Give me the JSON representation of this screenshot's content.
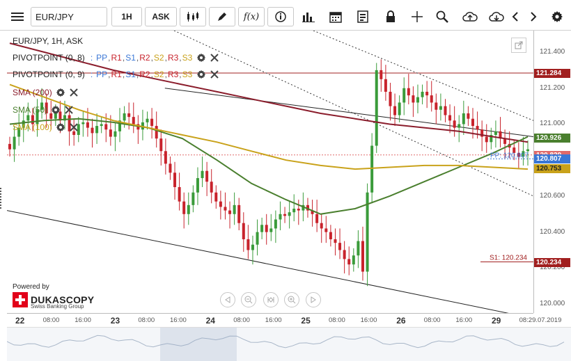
{
  "toolbar": {
    "symbol": "EUR/JPY",
    "timeframe": "1H",
    "price_side": "ASK",
    "icons": [
      "menu-icon",
      "candles-icon",
      "pen-icon",
      "function-icon",
      "info-icon",
      "bar-chart-icon",
      "calendar-icon",
      "document-icon",
      "lock-icon",
      "crosshair-icon",
      "zoom-icon",
      "upload-icon",
      "download-icon",
      "chevron-left-icon",
      "chevron-right-icon",
      "gear-icon"
    ]
  },
  "legend": {
    "title": "EUR/JPY, 1H, ASK",
    "pivot1_name": "PIVOTPOINT (0, 8)",
    "pivot2_name": "PIVOTPOINT (0, 9)",
    "pivot_sep": ":",
    "pivot_levels": [
      "PP",
      "R1",
      "S1",
      "R2",
      "S2",
      "R3",
      "S3"
    ],
    "sma200": "SMA (200)",
    "sma50": "SMA (50)",
    "sma100": "SMA (100)"
  },
  "colors": {
    "bull": "#3a9b3a",
    "bear": "#c8232c",
    "sma200": "#8b1d2c",
    "sma50": "#4a7f2e",
    "sma100": "#c9a21a",
    "pivot_pp": "#3a77d6",
    "r1": "#3a77d6",
    "r2": "#c8232c",
    "s2": "#c9a21a",
    "r3": "#c8232c",
    "s3": "#c9a21a",
    "pivot_r": "#a11f1f"
  },
  "price_axis": {
    "ticks": [
      "121.400",
      "121.200",
      "121.000",
      "120.800",
      "120.600",
      "120.400",
      "120.200",
      "120.000"
    ],
    "tags": [
      {
        "label": "121.284",
        "color": "#a11f1f"
      },
      {
        "label": "120.926",
        "color": "#4a7f2e"
      },
      {
        "label": "120.829",
        "color": "#e06a6a"
      },
      {
        "label": "120.807",
        "color": "#3a77d6"
      },
      {
        "label": "120.753",
        "color": "#c9a21a",
        "dark": true
      },
      {
        "label": "120.234",
        "color": "#a11f1f"
      }
    ]
  },
  "chart_annotations": {
    "s1_label": "S1: 120.234",
    "pp_label": "PP: 120.807"
  },
  "time_axis": {
    "labels": [
      {
        "text": "22",
        "day": true
      },
      {
        "text": "08:00"
      },
      {
        "text": "16:00"
      },
      {
        "text": "23",
        "day": true
      },
      {
        "text": "08:00"
      },
      {
        "text": "16:00"
      },
      {
        "text": "24",
        "day": true
      },
      {
        "text": "08:00"
      },
      {
        "text": "16:00"
      },
      {
        "text": "25",
        "day": true
      },
      {
        "text": "08:00"
      },
      {
        "text": "16:00"
      },
      {
        "text": "26",
        "day": true
      },
      {
        "text": "08:00"
      },
      {
        "text": "16:00"
      },
      {
        "text": "29",
        "day": true
      },
      {
        "text": "08:29.07.2019"
      }
    ]
  },
  "branding": {
    "powered_by": "Powered by",
    "company": "DUKASCOPY",
    "subtitle": "Swiss Banking Group"
  },
  "chart_data": {
    "type": "candlestick",
    "title": "EUR/JPY, 1H, ASK",
    "ylim": [
      119.95,
      121.52
    ],
    "x_ticks": [
      "22",
      "08:00",
      "16:00",
      "23",
      "08:00",
      "16:00",
      "24",
      "08:00",
      "16:00",
      "25",
      "08:00",
      "16:00",
      "26",
      "08:00",
      "16:00",
      "29",
      "08:29.07.2019"
    ],
    "closes": [
      120.86,
      120.93,
      120.98,
      121.02,
      121.05,
      121.0,
      121.08,
      121.12,
      121.06,
      121.03,
      121.07,
      121.02,
      121.05,
      120.96,
      120.94,
      121.0,
      121.01,
      120.98,
      120.95,
      120.99,
      121.0,
      120.97,
      120.93,
      120.96,
      121.02,
      121.06,
      121.04,
      121.0,
      120.97,
      121.01,
      121.03,
      120.99,
      120.92,
      120.85,
      120.78,
      120.73,
      120.65,
      120.57,
      120.5,
      120.55,
      120.62,
      120.7,
      120.74,
      120.68,
      120.62,
      120.57,
      120.54,
      120.52,
      120.5,
      120.55,
      120.45,
      120.36,
      120.3,
      120.33,
      120.4,
      120.44,
      120.4,
      120.42,
      120.47,
      120.5,
      120.49,
      120.51,
      120.53,
      120.52,
      120.55,
      120.52,
      120.5,
      120.45,
      120.42,
      120.4,
      120.36,
      120.34,
      120.3,
      120.25,
      120.22,
      120.27,
      120.35,
      120.18,
      120.62,
      120.88,
      121.3,
      121.25,
      121.18,
      121.1,
      121.05,
      121.12,
      121.2,
      121.16,
      121.12,
      121.15,
      121.18,
      121.16,
      121.12,
      121.08,
      121.1,
      121.05,
      121.02,
      120.98,
      121.0,
      121.06,
      121.03,
      120.99,
      120.97,
      120.93,
      120.9,
      120.94,
      120.96,
      120.92,
      120.89,
      120.87,
      120.84,
      120.82,
      120.85,
      120.86
    ],
    "series": [
      {
        "name": "SMA (200)",
        "values": [
          121.45,
          121.4,
          121.35,
          121.3,
          121.26,
          121.22,
          121.18,
          121.14,
          121.1,
          121.06,
          121.03,
          121.0,
          120.98,
          120.96,
          120.93,
          120.9
        ]
      },
      {
        "name": "SMA (50)",
        "values": [
          121.0,
          121.02,
          121.03,
          121.01,
          120.98,
          120.92,
          120.8,
          120.67,
          120.58,
          120.5,
          120.53,
          120.6,
          120.68,
          120.76,
          120.84,
          120.93
        ]
      },
      {
        "name": "SMA (100)",
        "values": [
          121.22,
          121.15,
          121.08,
          121.02,
          120.98,
          120.94,
          120.9,
          120.85,
          120.8,
          120.77,
          120.75,
          120.76,
          120.77,
          120.77,
          120.76,
          120.75
        ]
      }
    ],
    "horizontal_levels": [
      121.284,
      120.829,
      120.807,
      120.234
    ],
    "trend_lines": [
      {
        "from": [
          0,
          120.52
        ],
        "to": [
          1,
          119.92
        ]
      },
      {
        "from": [
          0.3,
          121.2
        ],
        "to": [
          1,
          120.93
        ]
      }
    ]
  }
}
